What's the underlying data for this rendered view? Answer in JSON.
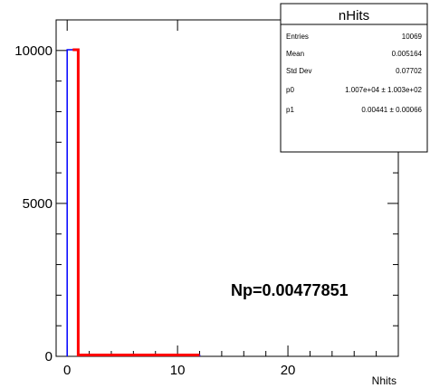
{
  "chart_data": {
    "type": "histogram",
    "xlabel": "Nhits",
    "ylabel": "",
    "xlim": [
      -1,
      30
    ],
    "ylim": [
      0,
      11000
    ],
    "x_ticks": [
      0,
      10,
      20
    ],
    "y_ticks": [
      0,
      5000,
      10000
    ],
    "y_tick_labels": [
      "0",
      "5000",
      "10000"
    ],
    "x_tick_labels": [
      "0",
      "10",
      "20"
    ],
    "bins": [
      {
        "low": 0,
        "high": 1,
        "value": 10024
      },
      {
        "low": 1,
        "high": 12,
        "value": 45
      }
    ],
    "fit": {
      "color": "#ff0000",
      "segments": [
        {
          "x0": 0.5,
          "x1": 1.0,
          "y": 10024
        },
        {
          "x0": 1.0,
          "x1": 12.0,
          "y": 45
        }
      ]
    },
    "histogram_color": "#0000ff",
    "fit_color": "#ff0000",
    "annotation": "Np=0.00477851",
    "stats": {
      "title": "nHits",
      "rows": [
        {
          "label": "Entries",
          "value": "10069"
        },
        {
          "label": "Mean",
          "value": "0.005164"
        },
        {
          "label": "Std Dev",
          "value": "0.07702"
        },
        {
          "label": "p0",
          "value": "1.007e+04 ± 1.003e+02"
        },
        {
          "label": "p1",
          "value": "0.00441 ± 0.00066"
        }
      ]
    }
  }
}
